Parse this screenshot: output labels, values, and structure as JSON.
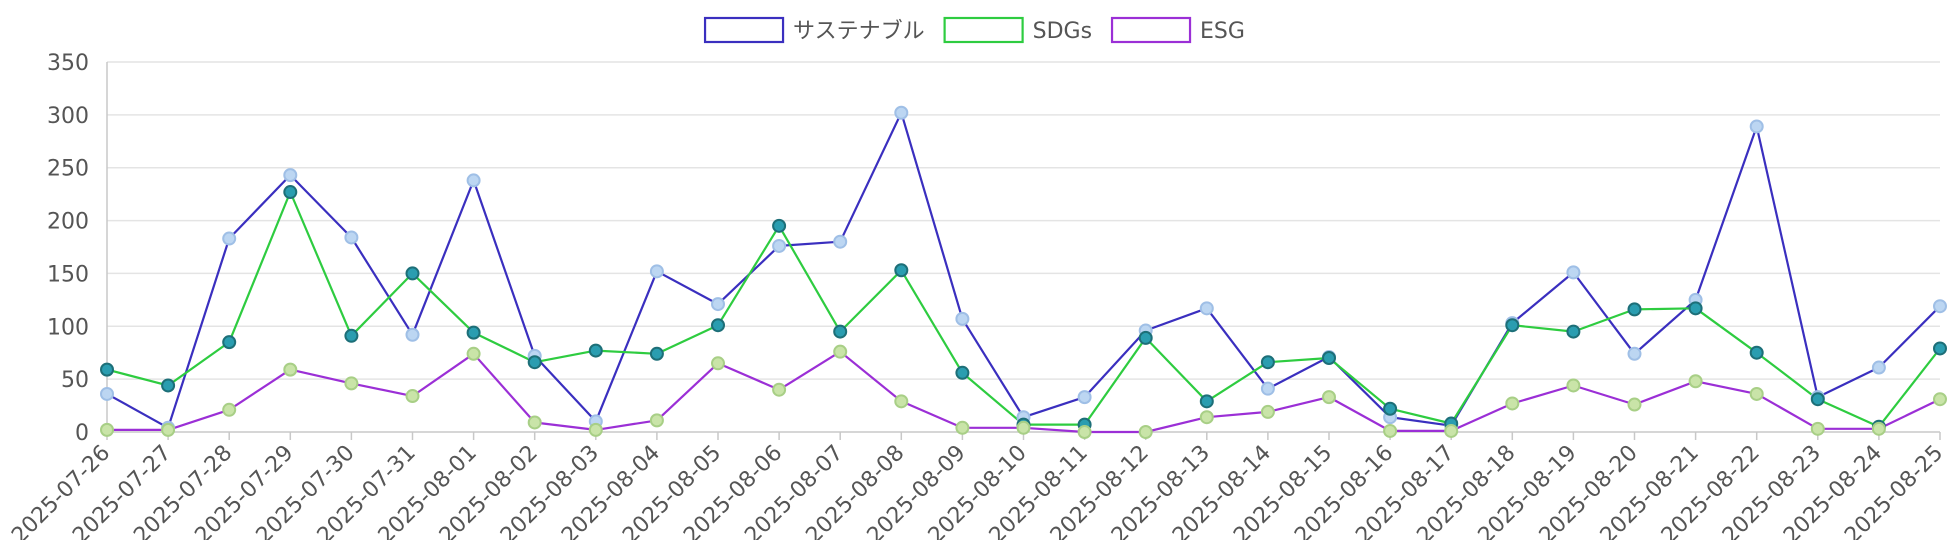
{
  "chart_data": {
    "type": "line",
    "title": "",
    "xlabel": "",
    "ylabel": "",
    "ylim": [
      0,
      350
    ],
    "yticks": [
      0,
      50,
      100,
      150,
      200,
      250,
      300,
      350
    ],
    "grid": true,
    "legend_position": "top-center",
    "categories": [
      "2025-07-26",
      "2025-07-27",
      "2025-07-28",
      "2025-07-29",
      "2025-07-30",
      "2025-07-31",
      "2025-08-01",
      "2025-08-02",
      "2025-08-03",
      "2025-08-04",
      "2025-08-05",
      "2025-08-06",
      "2025-08-07",
      "2025-08-08",
      "2025-08-09",
      "2025-08-10",
      "2025-08-11",
      "2025-08-12",
      "2025-08-13",
      "2025-08-14",
      "2025-08-15",
      "2025-08-16",
      "2025-08-17",
      "2025-08-18",
      "2025-08-19",
      "2025-08-20",
      "2025-08-21",
      "2025-08-22",
      "2025-08-23",
      "2025-08-24",
      "2025-08-25"
    ],
    "series": [
      {
        "name": "サステナブル",
        "color": "#3a2fbf",
        "point_fill": "#bcd6f2",
        "point_stroke": "#9fbfe6",
        "values": [
          36,
          4,
          183,
          243,
          184,
          92,
          238,
          72,
          10,
          152,
          121,
          176,
          180,
          302,
          107,
          14,
          33,
          96,
          117,
          41,
          71,
          14,
          6,
          103,
          151,
          74,
          125,
          289,
          33,
          61,
          119
        ]
      },
      {
        "name": "SDGs",
        "color": "#2ecc40",
        "point_fill": "#2a9db0",
        "point_stroke": "#1d6f78",
        "values": [
          59,
          44,
          85,
          227,
          91,
          150,
          94,
          66,
          77,
          74,
          101,
          195,
          95,
          153,
          56,
          7,
          7,
          89,
          29,
          66,
          70,
          22,
          8,
          101,
          95,
          116,
          117,
          75,
          31,
          5,
          79
        ]
      },
      {
        "name": "ESG",
        "color": "#9b2fd6",
        "point_fill": "#c9e4a8",
        "point_stroke": "#a8cf86",
        "values": [
          2,
          2,
          21,
          59,
          46,
          34,
          74,
          9,
          2,
          11,
          65,
          40,
          76,
          29,
          4,
          4,
          0,
          0,
          14,
          19,
          33,
          1,
          1,
          27,
          44,
          26,
          48,
          36,
          3,
          3,
          31
        ]
      }
    ]
  }
}
